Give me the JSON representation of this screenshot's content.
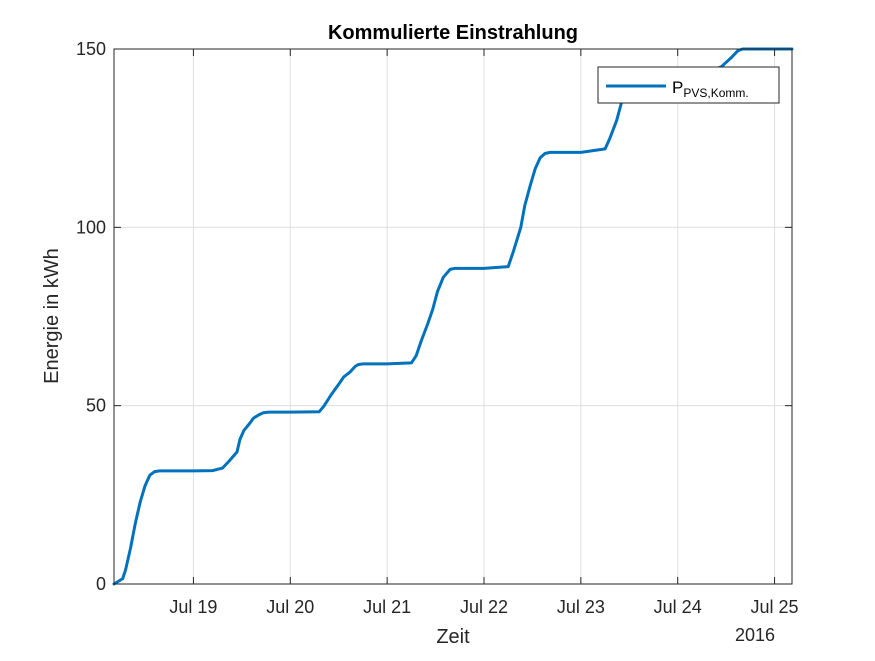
{
  "chart_data": {
    "type": "line",
    "title": "Kommulierte Einstrahlung",
    "xlabel": "Zeit",
    "ylabel": "Energie in kWh",
    "x_secondary_label": "2016",
    "xticks": [
      "Jul 19",
      "Jul 20",
      "Jul 21",
      "Jul 22",
      "Jul 23",
      "Jul 24",
      "Jul 25"
    ],
    "xlim": [
      18.18,
      25.18
    ],
    "ylim": [
      0,
      150
    ],
    "yticks": [
      0,
      50,
      100,
      150
    ],
    "grid": true,
    "legend_position": "top-right",
    "series": [
      {
        "name_main": "P",
        "name_sub": "PVS,Komm.",
        "color": "#0072BD",
        "x": [
          18.18,
          18.2,
          18.27,
          18.3,
          18.35,
          18.4,
          18.45,
          18.5,
          18.55,
          18.6,
          18.65,
          18.7,
          18.75,
          18.8,
          18.9,
          19.0,
          19.2,
          19.3,
          19.37,
          19.45,
          19.48,
          19.52,
          19.58,
          19.62,
          19.68,
          19.72,
          19.78,
          19.85,
          20.0,
          20.3,
          20.35,
          20.42,
          20.5,
          20.55,
          20.62,
          20.67,
          20.7,
          20.75,
          20.85,
          21.0,
          21.25,
          21.3,
          21.35,
          21.42,
          21.47,
          21.52,
          21.58,
          21.65,
          21.7,
          21.75,
          21.85,
          22.0,
          22.25,
          22.3,
          22.38,
          22.42,
          22.48,
          22.53,
          22.58,
          22.63,
          22.68,
          22.72,
          22.8,
          23.0,
          23.25,
          23.3,
          23.37,
          23.42,
          23.5,
          23.55,
          23.6,
          23.63,
          23.7,
          24.0,
          24.2,
          24.3,
          24.45,
          24.55,
          24.62,
          24.67,
          24.7,
          24.75,
          24.85,
          25.0,
          25.18
        ],
        "y": [
          0,
          0.3,
          1.5,
          4,
          10,
          17,
          23,
          27.5,
          30.5,
          31.5,
          31.7,
          31.7,
          31.7,
          31.7,
          31.7,
          31.7,
          31.8,
          32.5,
          34.5,
          37,
          40.5,
          43,
          45,
          46.5,
          47.5,
          48,
          48.2,
          48.2,
          48.2,
          48.3,
          50,
          53,
          56,
          58,
          59.5,
          61,
          61.5,
          61.7,
          61.7,
          61.7,
          62,
          64,
          68,
          73,
          77,
          82,
          86,
          88.2,
          88.5,
          88.5,
          88.5,
          88.5,
          89,
          93,
          100,
          106,
          112,
          116.5,
          119.5,
          120.7,
          121,
          121,
          121,
          121,
          122,
          125,
          130,
          135,
          140,
          142,
          143,
          143.2,
          143.2,
          143.2,
          143.2,
          143.5,
          145,
          147.5,
          149.5,
          150,
          150,
          150,
          150,
          150,
          150
        ]
      }
    ]
  }
}
